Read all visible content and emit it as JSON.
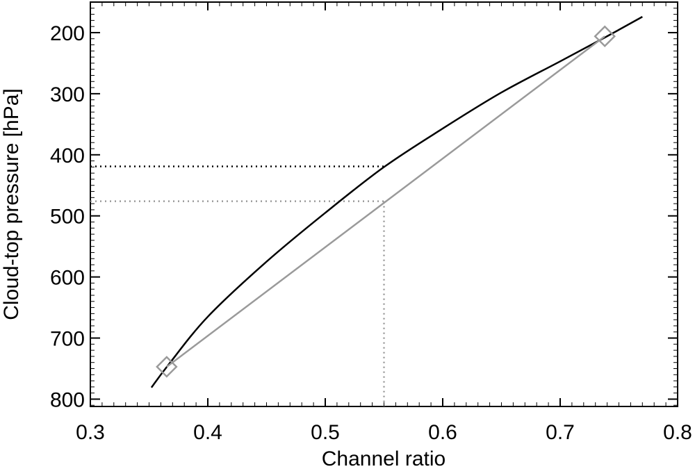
{
  "chart_data": {
    "type": "line",
    "title": "",
    "xlabel": "Channel ratio",
    "ylabel": "Cloud-top pressure [hPa]",
    "xlim": [
      0.3,
      0.8
    ],
    "ylim": [
      812,
      150
    ],
    "y_inverted": true,
    "grid": false,
    "x_ticks": [
      0.3,
      0.4,
      0.5,
      0.6,
      0.7,
      0.8
    ],
    "x_tick_labels": [
      "0.3",
      "0.4",
      "0.5",
      "0.6",
      "0.7",
      "0.8"
    ],
    "y_ticks": [
      200,
      300,
      400,
      500,
      600,
      700,
      800
    ],
    "y_tick_labels": [
      "200",
      "300",
      "400",
      "500",
      "600",
      "700",
      "800"
    ],
    "series": [
      {
        "style": "black solid line",
        "color": "#000000",
        "x": [
          0.352,
          0.366,
          0.4,
          0.45,
          0.5,
          0.55,
          0.6,
          0.65,
          0.7,
          0.738,
          0.77
        ],
        "y": [
          781,
          745,
          665,
          575,
          495,
          420,
          357,
          298,
          247,
          208,
          174
        ]
      },
      {
        "style": "gray solid line with diamond endpoints",
        "color": "#9a9a9a",
        "marker": "diamond",
        "x": [
          0.365,
          0.738
        ],
        "y": [
          747,
          206
        ]
      }
    ],
    "reference_lines": [
      {
        "type": "horizontal",
        "style": "dotted",
        "color": "#000000",
        "y": 419,
        "x_from": 0.3,
        "x_to": 0.55
      },
      {
        "type": "horizontal",
        "style": "dotted",
        "color": "#9a9a9a",
        "y": 476,
        "x_from": 0.3,
        "x_to": 0.55
      },
      {
        "type": "vertical",
        "style": "dotted",
        "color": "#9a9a9a",
        "x": 0.55,
        "y_from": 476,
        "y_to": 812
      }
    ]
  }
}
